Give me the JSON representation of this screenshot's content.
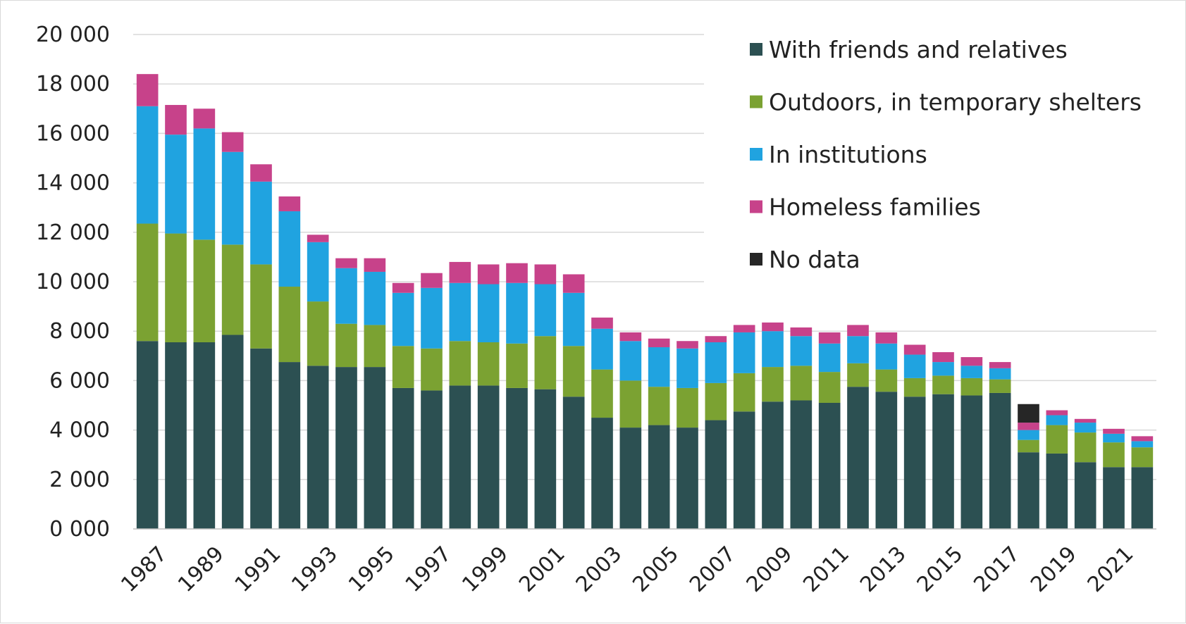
{
  "chart_data": {
    "type": "bar",
    "stacked": true,
    "title": "",
    "xlabel": "",
    "ylabel": "",
    "ylim": [
      0,
      20000
    ],
    "yticks": [
      "0 000",
      "2 000",
      "4 000",
      "6 000",
      "8 000",
      "10 000",
      "12 000",
      "14 000",
      "16 000",
      "18 000",
      "20 000"
    ],
    "grid": "horizontal",
    "legend_position": "top-right",
    "categories": [
      "1987",
      "1988",
      "1989",
      "1990",
      "1991",
      "1992",
      "1993",
      "1994",
      "1995",
      "1996",
      "1997",
      "1998",
      "1999",
      "2000",
      "2001",
      "2002",
      "2003",
      "2004",
      "2005",
      "2006",
      "2007",
      "2008",
      "2009",
      "2010",
      "2011",
      "2012",
      "2013",
      "2014",
      "2015",
      "2016",
      "2017",
      "2018",
      "2019",
      "2020",
      "2021",
      "2022"
    ],
    "xtick_labels": [
      "1987",
      "1989",
      "1991",
      "1993",
      "1995",
      "1997",
      "1999",
      "2001",
      "2003",
      "2005",
      "2007",
      "2009",
      "2011",
      "2013",
      "2015",
      "2017",
      "2019",
      "2021"
    ],
    "series": [
      {
        "name": "With friends and relatives",
        "color": "#2c5052",
        "values": [
          7600,
          7550,
          7550,
          7850,
          7300,
          6750,
          6600,
          6550,
          6550,
          5700,
          5600,
          5800,
          5800,
          5700,
          5650,
          5350,
          4500,
          4100,
          4200,
          4100,
          4400,
          4750,
          5150,
          5200,
          5100,
          5750,
          5550,
          5350,
          5450,
          5400,
          5500,
          3100,
          3050,
          2700,
          2500,
          2500
        ]
      },
      {
        "name": "Outdoors, in temporary shelters",
        "color": "#7ba232",
        "values": [
          4750,
          4400,
          4150,
          3650,
          3400,
          3050,
          2600,
          1750,
          1700,
          1700,
          1700,
          1800,
          1750,
          1800,
          2150,
          2050,
          1950,
          1900,
          1550,
          1600,
          1500,
          1550,
          1400,
          1400,
          1250,
          950,
          900,
          750,
          750,
          700,
          550,
          500,
          1150,
          1200,
          1000,
          800
        ]
      },
      {
        "name": "In institutions",
        "color": "#20a3e0",
        "values": [
          4750,
          4000,
          4500,
          3750,
          3350,
          3050,
          2400,
          2250,
          2150,
          2150,
          2450,
          2350,
          2350,
          2450,
          2100,
          2150,
          1650,
          1600,
          1600,
          1600,
          1650,
          1650,
          1450,
          1200,
          1150,
          1100,
          1050,
          950,
          550,
          500,
          450,
          400,
          400,
          400,
          350,
          250
        ]
      },
      {
        "name": "Homeless families",
        "color": "#c7428a",
        "values": [
          1300,
          1200,
          800,
          800,
          700,
          600,
          300,
          400,
          550,
          400,
          600,
          850,
          800,
          800,
          800,
          750,
          450,
          350,
          350,
          300,
          250,
          300,
          350,
          350,
          450,
          450,
          450,
          400,
          400,
          350,
          250,
          300,
          200,
          150,
          200,
          200
        ]
      },
      {
        "name": "No data",
        "color": "#262626",
        "values": [
          0,
          0,
          0,
          0,
          0,
          0,
          0,
          0,
          0,
          0,
          0,
          0,
          0,
          0,
          0,
          0,
          0,
          0,
          0,
          0,
          0,
          0,
          0,
          0,
          0,
          0,
          0,
          0,
          0,
          0,
          0,
          750,
          0,
          0,
          0,
          0
        ]
      }
    ]
  }
}
